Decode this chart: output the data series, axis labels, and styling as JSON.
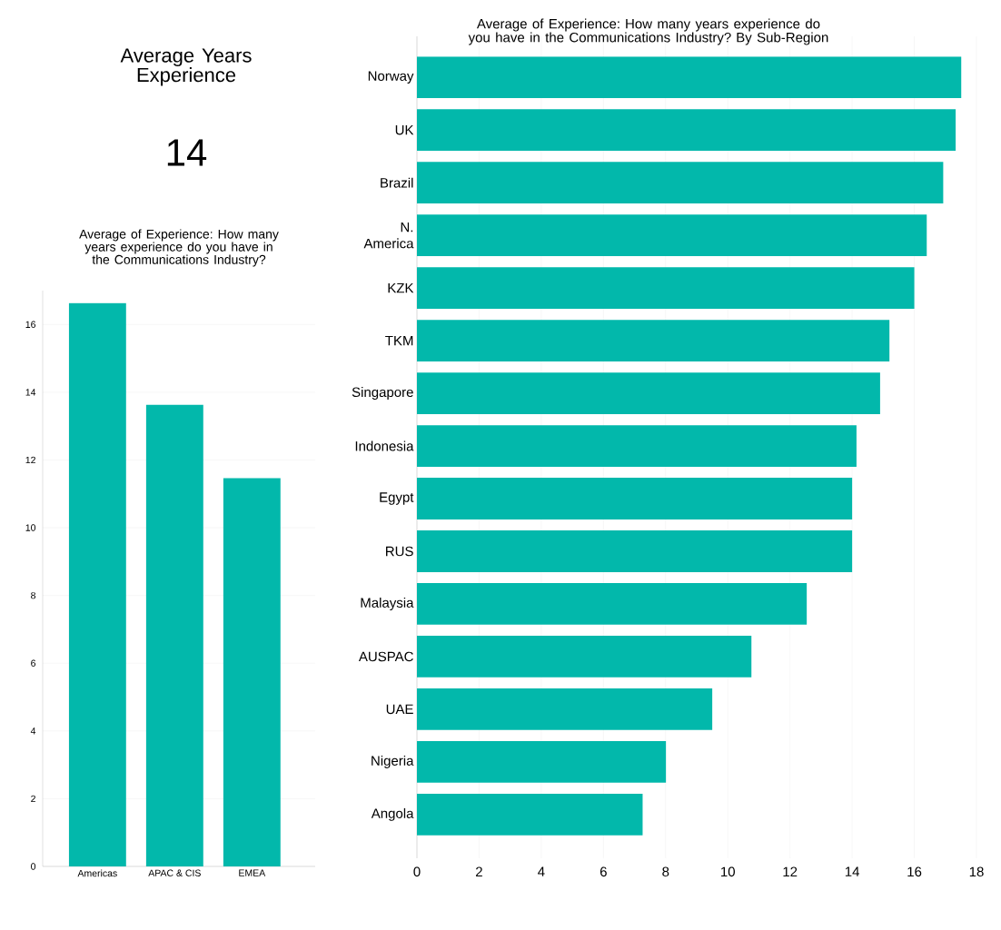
{
  "chart_data": [
    {
      "type": "other",
      "title": "Average Years Experience",
      "annotations": [
        "14"
      ]
    },
    {
      "type": "bar",
      "title": "Average of Experience: How many years experience do you have in the Communications Industry?",
      "categories": [
        "Americas",
        "APAC & CIS",
        "EMEA"
      ],
      "values": [
        16.63,
        13.63,
        11.46
      ],
      "color": "#02b8ab",
      "ylim": [
        0,
        17
      ],
      "yticks": [
        0,
        2,
        4,
        6,
        8,
        10,
        12,
        14,
        16
      ],
      "grid": "y"
    },
    {
      "type": "bar",
      "orientation": "horizontal",
      "title": "Average of Experience: How many years experience do you have in the Communications Industry? By Sub-Region",
      "categories": [
        "Norway",
        "UK",
        "Brazil",
        "N. America",
        "KZK",
        "TKM",
        "Singapore",
        "Indonesia",
        "Egypt",
        "RUS",
        "Malaysia",
        "AUSPAC",
        "UAE",
        "Nigeria",
        "Angola"
      ],
      "values": [
        17.51,
        17.33,
        16.93,
        16.4,
        16.0,
        15.2,
        14.9,
        14.14,
        14.0,
        14.0,
        12.54,
        10.76,
        9.5,
        8.01,
        7.26
      ],
      "color": "#02b8ab",
      "xlim": [
        0,
        18
      ],
      "xticks": [
        0,
        2,
        4,
        6,
        8,
        10,
        12,
        14,
        16,
        18
      ],
      "grid": "x"
    }
  ]
}
